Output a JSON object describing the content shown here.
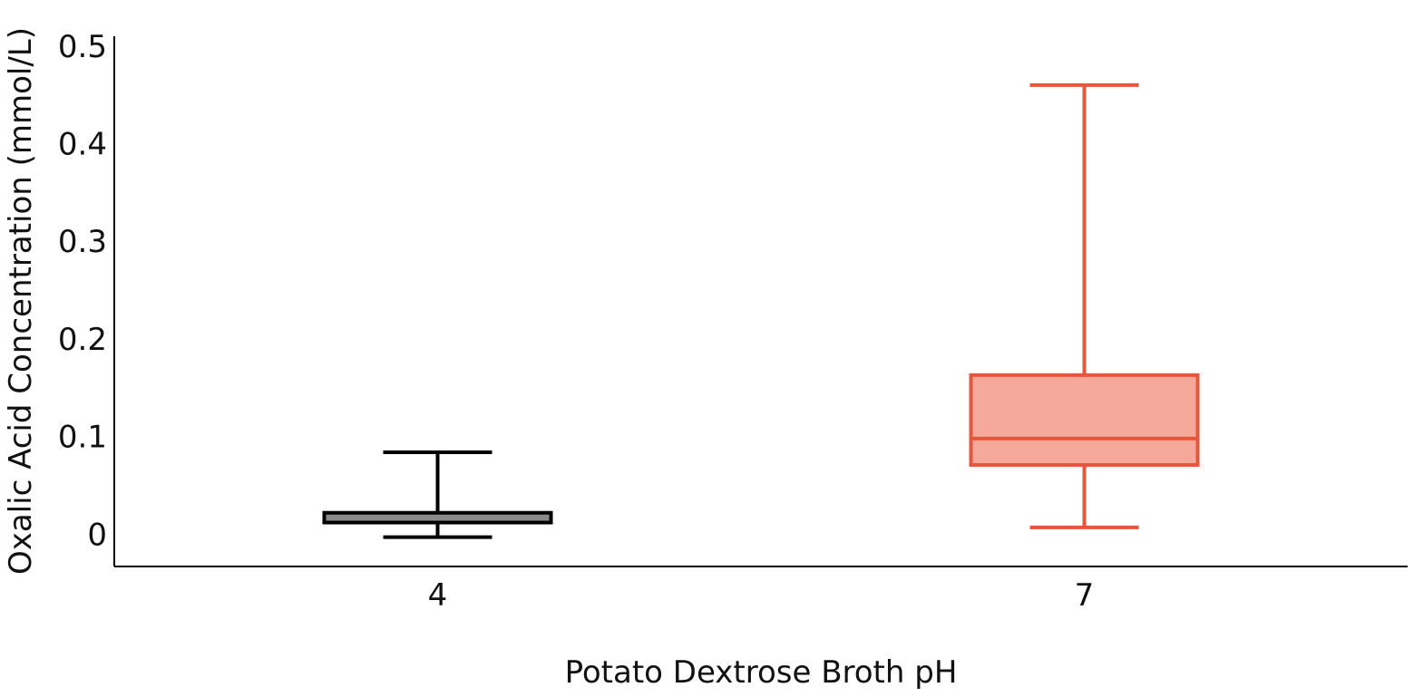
{
  "chart_data": {
    "type": "box",
    "title": "",
    "xlabel": "Potato Dextrose Broth pH",
    "ylabel": "Oxalic Acid Concentration (mmol/L)",
    "categories": [
      "4",
      "7"
    ],
    "ylim": [
      -0.033,
      0.51
    ],
    "yticks": [
      0,
      0.1,
      0.2,
      0.3,
      0.4,
      0.5
    ],
    "ytick_labels": [
      "0",
      "0.1",
      "0.2",
      "0.3",
      "0.4",
      "0.5"
    ],
    "grid": false,
    "legend": "none",
    "boxes": [
      {
        "category": "4",
        "whisker_low": -0.003,
        "q1": 0.012,
        "median": 0.018,
        "q3": 0.022,
        "whisker_high": 0.084,
        "stroke": "#000000",
        "fill": "#8a8a8a",
        "median_color": "#8a8a8a"
      },
      {
        "category": "7",
        "whisker_low": 0.007,
        "q1": 0.071,
        "median": 0.098,
        "q3": 0.163,
        "whisker_high": 0.46,
        "stroke": "#e8553d",
        "fill": "#f5a99a",
        "median_color": "#e8553d"
      }
    ]
  }
}
